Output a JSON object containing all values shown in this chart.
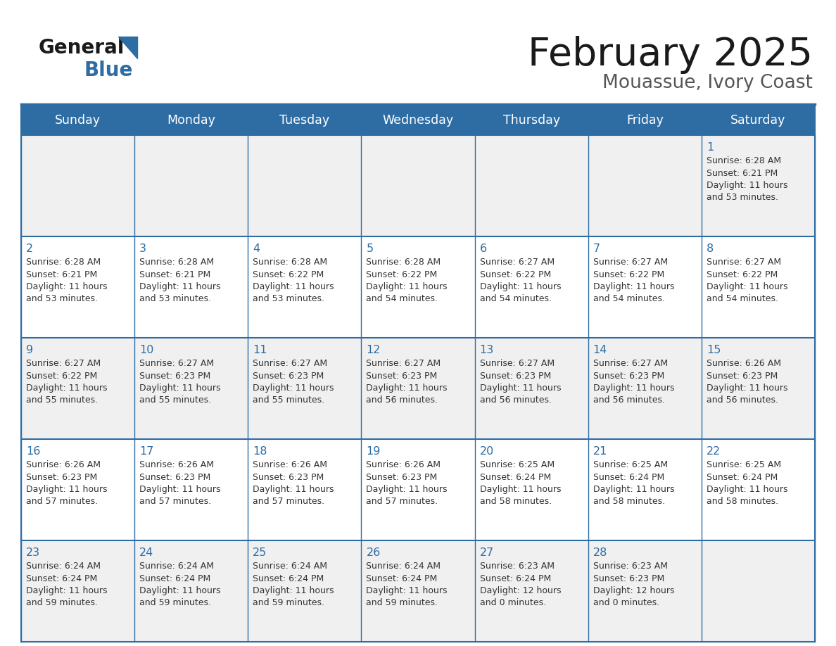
{
  "title": "February 2025",
  "subtitle": "Mouassue, Ivory Coast",
  "header_bg": "#2E6DA4",
  "header_text_color": "#FFFFFF",
  "day_names": [
    "Sunday",
    "Monday",
    "Tuesday",
    "Wednesday",
    "Thursday",
    "Friday",
    "Saturday"
  ],
  "bg_color": "#FFFFFF",
  "cell_bg_even": "#F0F0F0",
  "cell_bg_odd": "#FFFFFF",
  "grid_color": "#2E6DA4",
  "title_color": "#1a1a1a",
  "subtitle_color": "#555555",
  "day_num_color": "#2E6DA4",
  "cell_text_color": "#333333",
  "logo_general_color": "#1a1a1a",
  "logo_blue_color": "#2E6DA4",
  "logo_triangle_color": "#2E6DA4",
  "weeks": [
    [
      {
        "day": null,
        "info": null
      },
      {
        "day": null,
        "info": null
      },
      {
        "day": null,
        "info": null
      },
      {
        "day": null,
        "info": null
      },
      {
        "day": null,
        "info": null
      },
      {
        "day": null,
        "info": null
      },
      {
        "day": 1,
        "info": "Sunrise: 6:28 AM\nSunset: 6:21 PM\nDaylight: 11 hours\nand 53 minutes."
      }
    ],
    [
      {
        "day": 2,
        "info": "Sunrise: 6:28 AM\nSunset: 6:21 PM\nDaylight: 11 hours\nand 53 minutes."
      },
      {
        "day": 3,
        "info": "Sunrise: 6:28 AM\nSunset: 6:21 PM\nDaylight: 11 hours\nand 53 minutes."
      },
      {
        "day": 4,
        "info": "Sunrise: 6:28 AM\nSunset: 6:22 PM\nDaylight: 11 hours\nand 53 minutes."
      },
      {
        "day": 5,
        "info": "Sunrise: 6:28 AM\nSunset: 6:22 PM\nDaylight: 11 hours\nand 54 minutes."
      },
      {
        "day": 6,
        "info": "Sunrise: 6:27 AM\nSunset: 6:22 PM\nDaylight: 11 hours\nand 54 minutes."
      },
      {
        "day": 7,
        "info": "Sunrise: 6:27 AM\nSunset: 6:22 PM\nDaylight: 11 hours\nand 54 minutes."
      },
      {
        "day": 8,
        "info": "Sunrise: 6:27 AM\nSunset: 6:22 PM\nDaylight: 11 hours\nand 54 minutes."
      }
    ],
    [
      {
        "day": 9,
        "info": "Sunrise: 6:27 AM\nSunset: 6:22 PM\nDaylight: 11 hours\nand 55 minutes."
      },
      {
        "day": 10,
        "info": "Sunrise: 6:27 AM\nSunset: 6:23 PM\nDaylight: 11 hours\nand 55 minutes."
      },
      {
        "day": 11,
        "info": "Sunrise: 6:27 AM\nSunset: 6:23 PM\nDaylight: 11 hours\nand 55 minutes."
      },
      {
        "day": 12,
        "info": "Sunrise: 6:27 AM\nSunset: 6:23 PM\nDaylight: 11 hours\nand 56 minutes."
      },
      {
        "day": 13,
        "info": "Sunrise: 6:27 AM\nSunset: 6:23 PM\nDaylight: 11 hours\nand 56 minutes."
      },
      {
        "day": 14,
        "info": "Sunrise: 6:27 AM\nSunset: 6:23 PM\nDaylight: 11 hours\nand 56 minutes."
      },
      {
        "day": 15,
        "info": "Sunrise: 6:26 AM\nSunset: 6:23 PM\nDaylight: 11 hours\nand 56 minutes."
      }
    ],
    [
      {
        "day": 16,
        "info": "Sunrise: 6:26 AM\nSunset: 6:23 PM\nDaylight: 11 hours\nand 57 minutes."
      },
      {
        "day": 17,
        "info": "Sunrise: 6:26 AM\nSunset: 6:23 PM\nDaylight: 11 hours\nand 57 minutes."
      },
      {
        "day": 18,
        "info": "Sunrise: 6:26 AM\nSunset: 6:23 PM\nDaylight: 11 hours\nand 57 minutes."
      },
      {
        "day": 19,
        "info": "Sunrise: 6:26 AM\nSunset: 6:23 PM\nDaylight: 11 hours\nand 57 minutes."
      },
      {
        "day": 20,
        "info": "Sunrise: 6:25 AM\nSunset: 6:24 PM\nDaylight: 11 hours\nand 58 minutes."
      },
      {
        "day": 21,
        "info": "Sunrise: 6:25 AM\nSunset: 6:24 PM\nDaylight: 11 hours\nand 58 minutes."
      },
      {
        "day": 22,
        "info": "Sunrise: 6:25 AM\nSunset: 6:24 PM\nDaylight: 11 hours\nand 58 minutes."
      }
    ],
    [
      {
        "day": 23,
        "info": "Sunrise: 6:24 AM\nSunset: 6:24 PM\nDaylight: 11 hours\nand 59 minutes."
      },
      {
        "day": 24,
        "info": "Sunrise: 6:24 AM\nSunset: 6:24 PM\nDaylight: 11 hours\nand 59 minutes."
      },
      {
        "day": 25,
        "info": "Sunrise: 6:24 AM\nSunset: 6:24 PM\nDaylight: 11 hours\nand 59 minutes."
      },
      {
        "day": 26,
        "info": "Sunrise: 6:24 AM\nSunset: 6:24 PM\nDaylight: 11 hours\nand 59 minutes."
      },
      {
        "day": 27,
        "info": "Sunrise: 6:23 AM\nSunset: 6:24 PM\nDaylight: 12 hours\nand 0 minutes."
      },
      {
        "day": 28,
        "info": "Sunrise: 6:23 AM\nSunset: 6:23 PM\nDaylight: 12 hours\nand 0 minutes."
      },
      {
        "day": null,
        "info": null
      }
    ]
  ]
}
